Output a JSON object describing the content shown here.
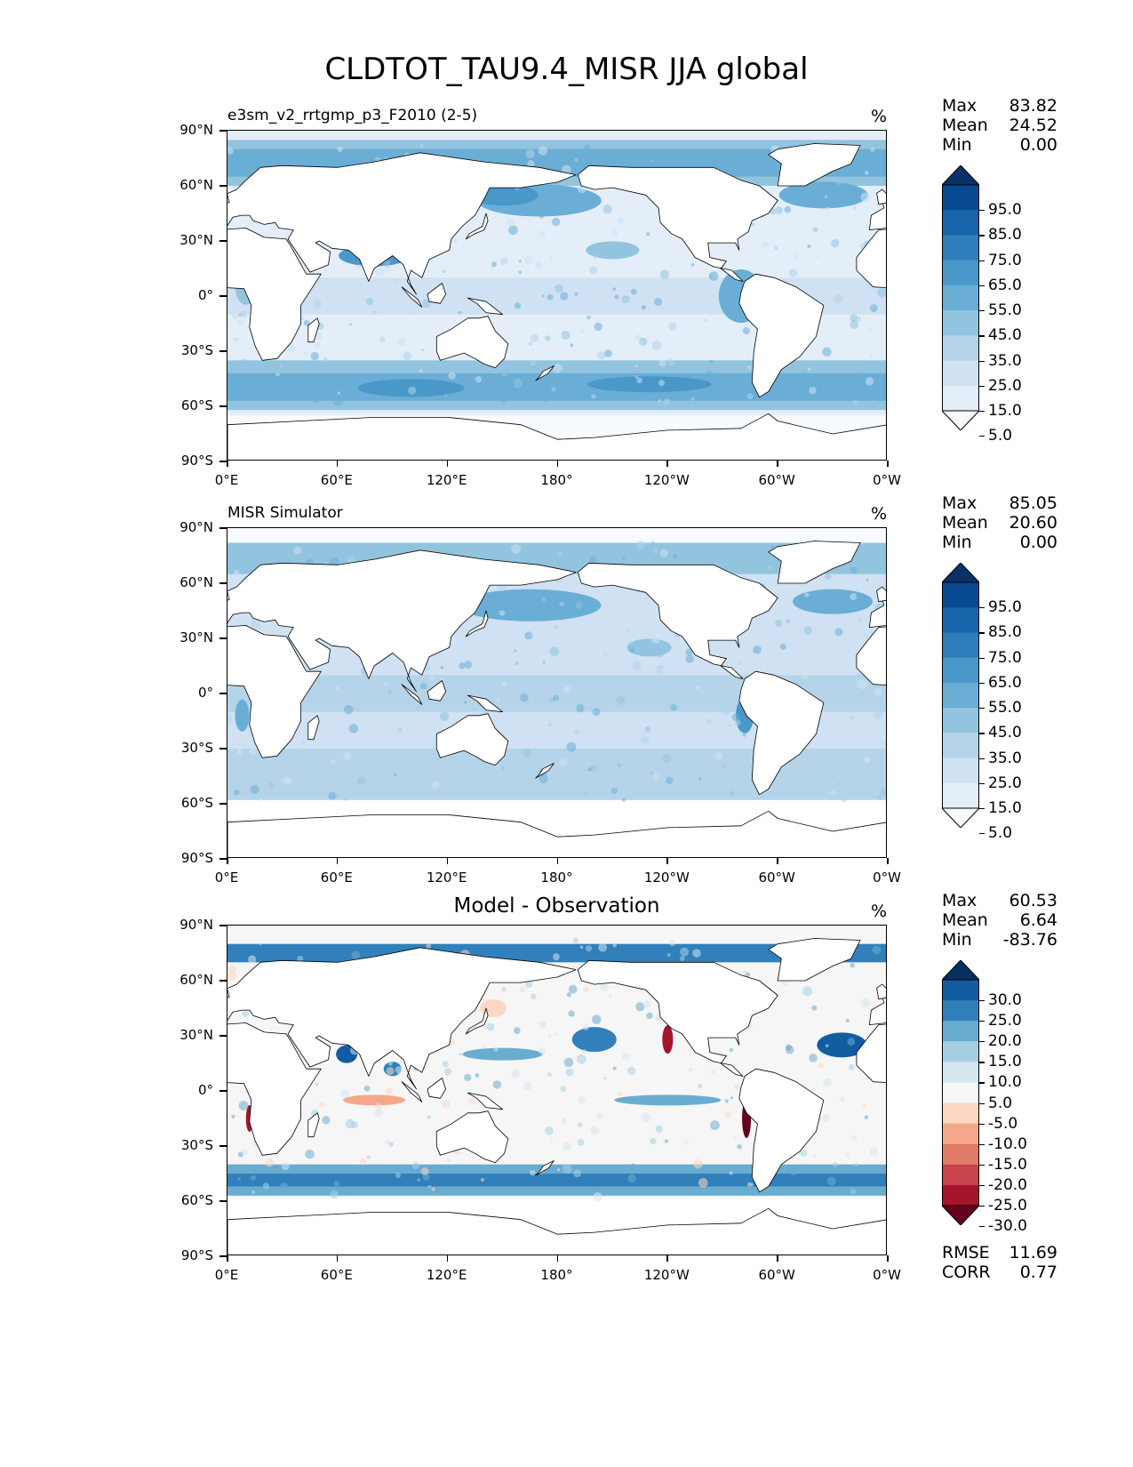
{
  "title": "CLDTOT_TAU9.4_MISR JJA global",
  "x_tick_labels": [
    "0°E",
    "60°E",
    "120°E",
    "180°",
    "120°W",
    "60°W",
    "0°W"
  ],
  "y_tick_labels": [
    "90°N",
    "60°N",
    "30°N",
    "0°",
    "30°S",
    "60°S",
    "90°S"
  ],
  "colors": {
    "seq": [
      "#f7fbff",
      "#e3eef9",
      "#cfe1f2",
      "#b5d4e9",
      "#93c4df",
      "#6aaed6",
      "#4a98c9",
      "#2e7ebc",
      "#1764ab",
      "#084a91",
      "#08306b"
    ],
    "div": [
      "#67001f",
      "#a51429",
      "#c9444b",
      "#e07c67",
      "#f4a889",
      "#fbd7c4",
      "#f6f6f6",
      "#d6e6f1",
      "#a7cfe4",
      "#6aacd0",
      "#3180bb",
      "#125da2",
      "#053061"
    ],
    "land": "#ffffff",
    "coast": "#000000"
  },
  "panels": [
    {
      "id": "test",
      "subtitle": "e3sm_v2_rrtgmp_p3_F2010 (2-5)",
      "units": "%",
      "stats": {
        "max_label": "Max",
        "max": "83.82",
        "mean_label": "Mean",
        "mean": "24.52",
        "min_label": "Min",
        "min": "0.00"
      },
      "colorbar": {
        "levels": [
          "95.0",
          "85.0",
          "75.0",
          "65.0",
          "55.0",
          "45.0",
          "35.0",
          "25.0",
          "15.0",
          "5.0"
        ],
        "palette": "seq"
      }
    },
    {
      "id": "ref",
      "subtitle": "MISR Simulator",
      "units": "%",
      "stats": {
        "max_label": "Max",
        "max": "85.05",
        "mean_label": "Mean",
        "mean": "20.60",
        "min_label": "Min",
        "min": "0.00"
      },
      "colorbar": {
        "levels": [
          "95.0",
          "85.0",
          "75.0",
          "65.0",
          "55.0",
          "45.0",
          "35.0",
          "25.0",
          "15.0",
          "5.0"
        ],
        "palette": "seq"
      }
    },
    {
      "id": "diff",
      "subtitle": "Model - Observation",
      "units": "%",
      "stats": {
        "max_label": "Max",
        "max": "60.53",
        "mean_label": "Mean",
        "mean": "6.64",
        "min_label": "Min",
        "min": "-83.76"
      },
      "colorbar": {
        "levels": [
          "30.0",
          "25.0",
          "20.0",
          "15.0",
          "10.0",
          "5.0",
          "-5.0",
          "-10.0",
          "-15.0",
          "-20.0",
          "-25.0",
          "-30.0"
        ],
        "palette": "div"
      },
      "rmse_label": "RMSE",
      "rmse": "11.69",
      "corr_label": "CORR",
      "corr": "0.77"
    }
  ],
  "chart_data": [
    {
      "type": "heatmap",
      "title": "e3sm_v2_rrtgmp_p3_F2010 (2-5)",
      "projection": "PlateCarree",
      "xlim": [
        0,
        360
      ],
      "ylim": [
        -90,
        90
      ],
      "units": "%",
      "max": 83.82,
      "mean": 24.52,
      "min": 0.0,
      "levels": [
        5,
        15,
        25,
        35,
        45,
        55,
        65,
        75,
        85,
        95
      ]
    },
    {
      "type": "heatmap",
      "title": "MISR Simulator",
      "projection": "PlateCarree",
      "xlim": [
        0,
        360
      ],
      "ylim": [
        -90,
        90
      ],
      "units": "%",
      "max": 85.05,
      "mean": 20.6,
      "min": 0.0,
      "levels": [
        5,
        15,
        25,
        35,
        45,
        55,
        65,
        75,
        85,
        95
      ]
    },
    {
      "type": "heatmap",
      "title": "Model - Observation",
      "projection": "PlateCarree",
      "xlim": [
        0,
        360
      ],
      "ylim": [
        -90,
        90
      ],
      "units": "%",
      "max": 60.53,
      "mean": 6.64,
      "min": -83.76,
      "levels": [
        -30,
        -25,
        -20,
        -15,
        -10,
        -5,
        5,
        10,
        15,
        20,
        25,
        30
      ],
      "rmse": 11.69,
      "corr": 0.77
    }
  ]
}
